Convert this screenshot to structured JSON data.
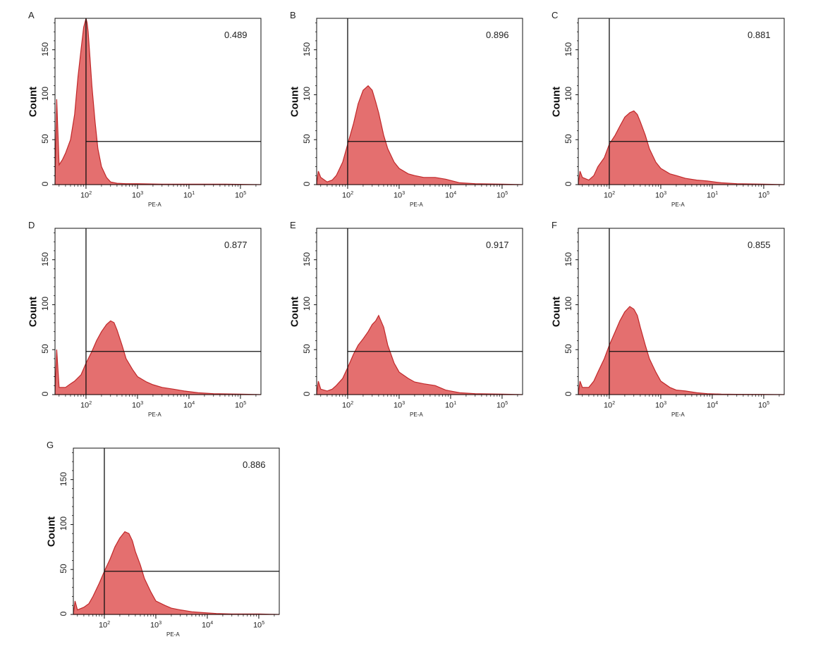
{
  "chart_data": [
    {
      "panel": "A",
      "type": "area",
      "value_label": "0.489",
      "xlabel": "PE-A",
      "ylabel": "Count",
      "xscale": "log",
      "xlim": [
        25,
        250000
      ],
      "ylim": [
        0,
        185
      ],
      "xticks": [
        "2",
        "3",
        "1",
        "5"
      ],
      "yticks": [
        "0",
        "50",
        "100",
        "150"
      ],
      "gate": {
        "x": 100,
        "y": 48
      },
      "series": [
        {
          "x": [
            25,
            27,
            30,
            35,
            40,
            50,
            60,
            70,
            80,
            90,
            100,
            105,
            110,
            120,
            130,
            150,
            170,
            200,
            250,
            300,
            400,
            600,
            1000,
            3000,
            10000,
            50000,
            250000
          ],
          "y": [
            0,
            95,
            22,
            28,
            35,
            50,
            78,
            120,
            150,
            175,
            185,
            180,
            170,
            140,
            110,
            70,
            40,
            20,
            8,
            3,
            1.5,
            1,
            1,
            0.5,
            0.5,
            0.5,
            0
          ]
        }
      ]
    },
    {
      "panel": "B",
      "type": "area",
      "value_label": "0.896",
      "xlabel": "PE-A",
      "ylabel": "Count",
      "xscale": "log",
      "xlim": [
        25,
        250000
      ],
      "ylim": [
        0,
        185
      ],
      "xticks": [
        "2",
        "3",
        "4",
        "5"
      ],
      "yticks": [
        "0",
        "50",
        "100",
        "150"
      ],
      "gate": {
        "x": 100,
        "y": 48
      },
      "series": [
        {
          "x": [
            25,
            27,
            30,
            40,
            50,
            60,
            80,
            100,
            130,
            160,
            200,
            250,
            300,
            350,
            400,
            500,
            600,
            800,
            1000,
            1500,
            2000,
            3000,
            5000,
            8000,
            15000,
            30000,
            100000,
            250000
          ],
          "y": [
            0,
            15,
            8,
            3,
            5,
            10,
            25,
            45,
            68,
            90,
            105,
            110,
            105,
            92,
            80,
            55,
            40,
            25,
            18,
            12,
            10,
            8,
            8,
            6,
            2,
            1,
            0.5,
            0
          ]
        }
      ]
    },
    {
      "panel": "C",
      "type": "area",
      "value_label": "0.881",
      "xlabel": "PE-A",
      "ylabel": "Count",
      "xscale": "log",
      "xlim": [
        25,
        250000
      ],
      "ylim": [
        0,
        185
      ],
      "xticks": [
        "2",
        "3",
        "1",
        "5"
      ],
      "yticks": [
        "0",
        "50",
        "100",
        "150"
      ],
      "gate": {
        "x": 100,
        "y": 48
      },
      "series": [
        {
          "x": [
            25,
            27,
            30,
            40,
            50,
            60,
            80,
            100,
            130,
            160,
            200,
            250,
            300,
            350,
            400,
            500,
            600,
            800,
            1000,
            1500,
            2000,
            3000,
            5000,
            8000,
            15000,
            30000,
            100000,
            250000
          ],
          "y": [
            0,
            15,
            8,
            5,
            10,
            20,
            30,
            45,
            55,
            65,
            75,
            80,
            82,
            78,
            70,
            55,
            40,
            25,
            18,
            12,
            10,
            7,
            5,
            4,
            2,
            1,
            0.5,
            0
          ]
        }
      ]
    },
    {
      "panel": "D",
      "type": "area",
      "value_label": "0.877",
      "xlabel": "PE-A",
      "ylabel": "Count",
      "xscale": "log",
      "xlim": [
        25,
        250000
      ],
      "ylim": [
        0,
        185
      ],
      "xticks": [
        "2",
        "3",
        "4",
        "5"
      ],
      "yticks": [
        "0",
        "50",
        "100",
        "150"
      ],
      "gate": {
        "x": 100,
        "y": 48
      },
      "series": [
        {
          "x": [
            25,
            27,
            30,
            40,
            50,
            60,
            80,
            100,
            130,
            160,
            200,
            250,
            300,
            350,
            400,
            500,
            600,
            800,
            1000,
            1500,
            2000,
            3000,
            5000,
            8000,
            15000,
            30000,
            100000,
            250000
          ],
          "y": [
            0,
            50,
            8,
            8,
            12,
            15,
            22,
            35,
            48,
            60,
            70,
            78,
            82,
            80,
            72,
            55,
            40,
            28,
            20,
            14,
            11,
            8,
            6,
            4,
            2,
            1,
            0.5,
            0
          ]
        }
      ]
    },
    {
      "panel": "E",
      "type": "area",
      "value_label": "0.917",
      "xlabel": "PE-A",
      "ylabel": "Count",
      "xscale": "log",
      "xlim": [
        25,
        250000
      ],
      "ylim": [
        0,
        185
      ],
      "xticks": [
        "2",
        "3",
        "1",
        "5"
      ],
      "yticks": [
        "0",
        "50",
        "100",
        "150"
      ],
      "gate": {
        "x": 100,
        "y": 48
      },
      "series": [
        {
          "x": [
            25,
            27,
            30,
            40,
            50,
            60,
            80,
            100,
            130,
            160,
            200,
            250,
            300,
            350,
            400,
            500,
            600,
            800,
            1000,
            1500,
            2000,
            3000,
            5000,
            8000,
            15000,
            30000,
            100000,
            250000
          ],
          "y": [
            0,
            15,
            6,
            4,
            6,
            10,
            18,
            30,
            45,
            55,
            62,
            70,
            78,
            82,
            88,
            75,
            55,
            35,
            25,
            18,
            14,
            12,
            10,
            5,
            2,
            1,
            0.5,
            0
          ]
        }
      ]
    },
    {
      "panel": "F",
      "type": "area",
      "value_label": "0.855",
      "xlabel": "PE-A",
      "ylabel": "Count",
      "xscale": "log",
      "xlim": [
        25,
        250000
      ],
      "ylim": [
        0,
        185
      ],
      "xticks": [
        "2",
        "3",
        "4",
        "5"
      ],
      "yticks": [
        "0",
        "50",
        "100",
        "150"
      ],
      "gate": {
        "x": 100,
        "y": 48
      },
      "series": [
        {
          "x": [
            25,
            27,
            30,
            40,
            50,
            60,
            80,
            100,
            130,
            160,
            200,
            250,
            300,
            350,
            400,
            500,
            600,
            800,
            1000,
            1500,
            2000,
            3000,
            5000,
            8000,
            15000,
            30000,
            100000,
            250000
          ],
          "y": [
            0,
            15,
            8,
            8,
            15,
            25,
            40,
            55,
            70,
            82,
            92,
            98,
            95,
            88,
            75,
            55,
            40,
            25,
            15,
            8,
            5,
            4,
            2,
            1,
            0.5,
            0.3,
            0.2,
            0
          ]
        }
      ]
    },
    {
      "panel": "G",
      "type": "area",
      "value_label": "0.886",
      "xlabel": "PE-A",
      "ylabel": "Count",
      "xscale": "log",
      "xlim": [
        25,
        250000
      ],
      "ylim": [
        0,
        185
      ],
      "xticks": [
        "2",
        "3",
        "4",
        "5"
      ],
      "yticks": [
        "0",
        "50",
        "100",
        "150"
      ],
      "gate": {
        "x": 100,
        "y": 48
      },
      "series": [
        {
          "x": [
            25,
            27,
            30,
            40,
            50,
            60,
            80,
            100,
            130,
            160,
            200,
            250,
            300,
            350,
            400,
            500,
            600,
            800,
            1000,
            1500,
            2000,
            3000,
            5000,
            8000,
            15000,
            30000,
            100000,
            250000
          ],
          "y": [
            0,
            15,
            5,
            8,
            12,
            20,
            35,
            48,
            62,
            75,
            85,
            92,
            90,
            82,
            70,
            55,
            40,
            25,
            15,
            10,
            7,
            5,
            3,
            2,
            1,
            0.5,
            0.5,
            0
          ]
        }
      ]
    }
  ],
  "colors": {
    "fill": "#e46f6f",
    "stroke": "#c0282a",
    "gate": "#111111",
    "axis": "#111111"
  }
}
